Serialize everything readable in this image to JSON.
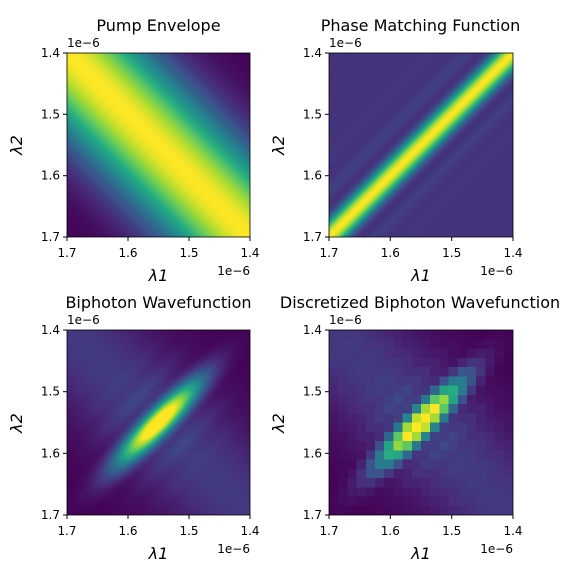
{
  "chart_data": [
    {
      "type": "heatmap",
      "title": "Pump Envelope",
      "xlabel": "λ1",
      "ylabel": "λ2",
      "xlim": [
        1.7,
        1.4
      ],
      "ylim": [
        1.7,
        1.4
      ],
      "xticks": [
        "1.7",
        "1.6",
        "1.5",
        "1.4"
      ],
      "yticks": [
        "1.4",
        "1.5",
        "1.6",
        "1.7"
      ],
      "x_offset_label": "1e−6",
      "y_offset_label": "1e−6",
      "colormap": "viridis",
      "pattern": "broad gaussian band along the anti-diagonal (λ1 + λ2 constant), peak value 1",
      "discretized": false
    },
    {
      "type": "heatmap",
      "title": "Phase Matching Function",
      "xlabel": "λ1",
      "ylabel": "λ2",
      "xlim": [
        1.7,
        1.4
      ],
      "ylim": [
        1.7,
        1.4
      ],
      "xticks": [
        "1.7",
        "1.6",
        "1.5",
        "1.4"
      ],
      "yticks": [
        "1.4",
        "1.5",
        "1.6",
        "1.7"
      ],
      "x_offset_label": "1e−6",
      "y_offset_label": "1e−6",
      "colormap": "viridis",
      "pattern": "sinc-shaped narrow band along the diagonal with side lobes, peak value 1",
      "discretized": false
    },
    {
      "type": "heatmap",
      "title": "Biphoton Wavefunction",
      "xlabel": "λ1",
      "ylabel": "λ2",
      "xlim": [
        1.7,
        1.4
      ],
      "ylim": [
        1.7,
        1.4
      ],
      "xticks": [
        "1.7",
        "1.6",
        "1.5",
        "1.4"
      ],
      "yticks": [
        "1.4",
        "1.5",
        "1.6",
        "1.7"
      ],
      "x_offset_label": "1e−6",
      "y_offset_label": "1e−6",
      "colormap": "viridis",
      "pattern": "product of pump envelope and phase matching function",
      "discretized": false
    },
    {
      "type": "heatmap",
      "title": "Discretized Biphoton Wavefunction",
      "xlabel": "λ1",
      "ylabel": "λ2",
      "xlim": [
        1.7,
        1.4
      ],
      "ylim": [
        1.7,
        1.4
      ],
      "xticks": [
        "1.7",
        "1.6",
        "1.5",
        "1.4"
      ],
      "yticks": [
        "1.4",
        "1.5",
        "1.6",
        "1.7"
      ],
      "x_offset_label": "1e−6",
      "y_offset_label": "1e−6",
      "colormap": "viridis",
      "pattern": "biphoton wavefunction sampled on a coarse grid",
      "discretized": true,
      "grid_cells": 20
    }
  ]
}
